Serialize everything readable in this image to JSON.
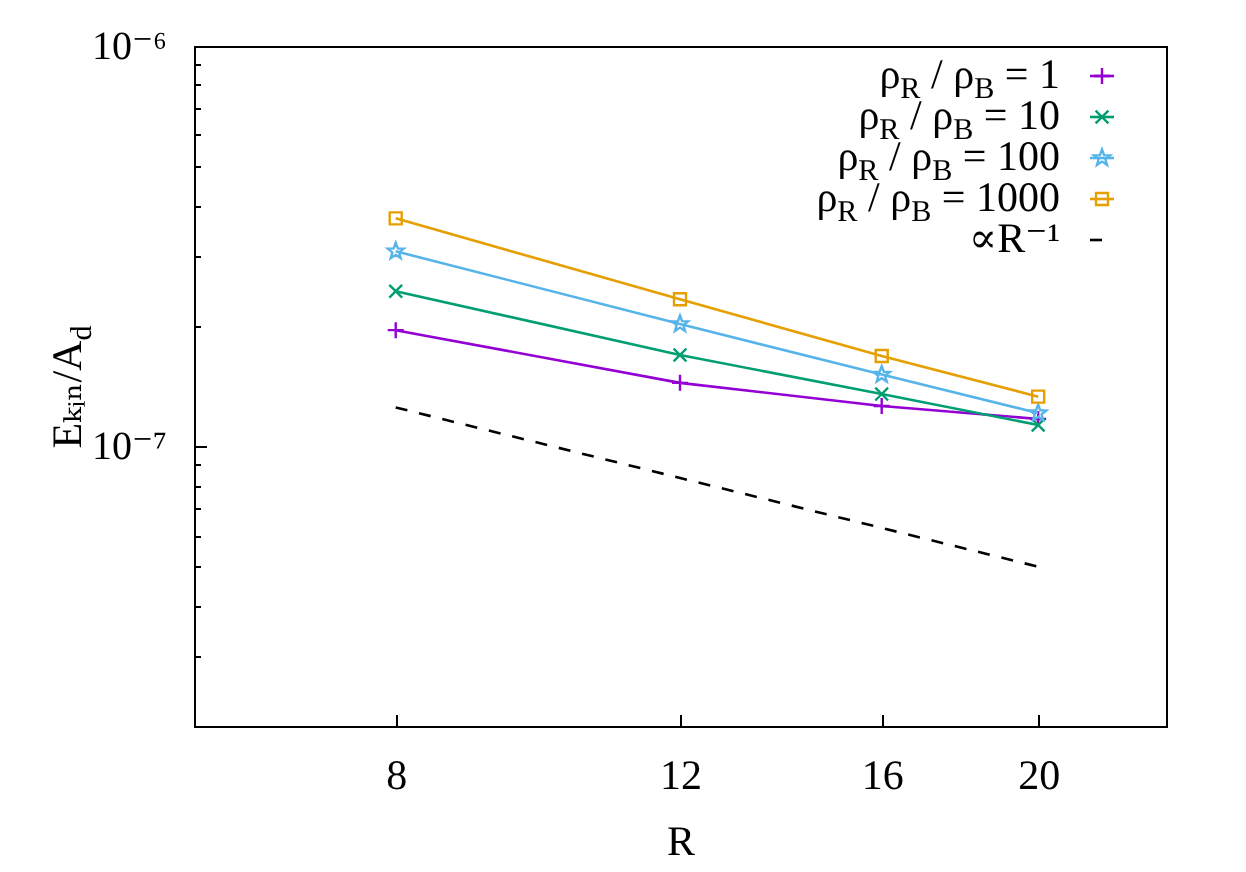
{
  "chart_data": {
    "type": "line",
    "xlabel": "R",
    "ylabel": "Eₖᵢₙ/A$_{d}$",
    "log": "xy",
    "legend": "top right",
    "x": [
      8,
      12,
      16,
      20
    ],
    "xlim": [
      6,
      24
    ],
    "xticks": [
      8,
      12,
      16,
      20
    ],
    "ylim": [
      2e-08,
      1e-06
    ],
    "yticks": [
      {
        "value": 1e-06,
        "label": "10⁻⁶"
      },
      {
        "value": 1e-07,
        "label": "10⁻⁷"
      },
      {
        "value": 3e-08,
        "label": null
      },
      {
        "value": 4e-08,
        "label": null
      },
      {
        "value": 5e-08,
        "label": null
      },
      {
        "value": 6e-08,
        "label": null
      },
      {
        "value": 7e-08,
        "label": null
      },
      {
        "value": 8e-08,
        "label": null
      },
      {
        "value": 9e-08,
        "label": null
      },
      {
        "value": 2e-07,
        "label": null
      },
      {
        "value": 3e-07,
        "label": null
      },
      {
        "value": 4e-07,
        "label": null
      },
      {
        "value": 5e-07,
        "label": null
      },
      {
        "value": 6e-07,
        "label": null
      },
      {
        "value": 7e-07,
        "label": null
      },
      {
        "value": 8e-07,
        "label": null
      },
      {
        "value": 9e-07,
        "label": null
      }
    ],
    "series": [
      {
        "name": "ρ$_{R}$ / ρ$_{B}$ = 1",
        "color": "#9400d3",
        "marker": "cross",
        "line_style": "solid",
        "values": [
          1.95e-07,
          1.44e-07,
          1.26e-07,
          1.17e-07
        ]
      },
      {
        "name": "ρ$_{R}$ / ρ$_{B}$ = 10",
        "color": "#009e73",
        "marker": "x",
        "line_style": "solid",
        "values": [
          2.44e-07,
          1.69e-07,
          1.35e-07,
          1.13e-07
        ]
      },
      {
        "name": "ρ$_{R}$ / ρ$_{B}$ = 100",
        "color": "#56b4e9",
        "marker": "star",
        "line_style": "solid",
        "values": [
          3.07e-07,
          2.02e-07,
          1.51e-07,
          1.21e-07
        ]
      },
      {
        "name": "ρ$_{R}$ / ρ$_{B}$ = 1000",
        "color": "#e69f00",
        "marker": "square",
        "line_style": "solid",
        "values": [
          3.71e-07,
          2.33e-07,
          1.68e-07,
          1.33e-07
        ]
      },
      {
        "name": "∝R⁻¹",
        "color": "#000000",
        "marker": "none",
        "line_style": "dashed",
        "x": [
          8,
          20
        ],
        "values": [
          1.25e-07,
          5e-08
        ]
      }
    ]
  }
}
